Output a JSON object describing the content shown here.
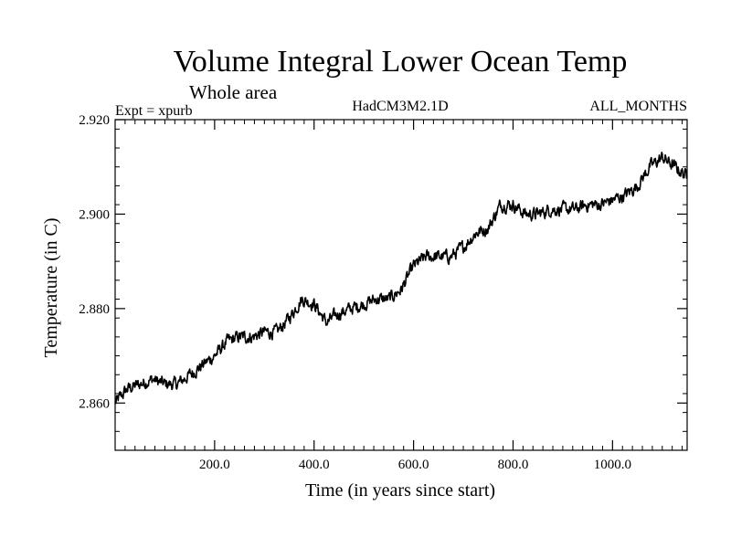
{
  "chart_data": {
    "type": "line",
    "title": "Volume Integral Lower Ocean Temp",
    "subtitle": "Whole area",
    "info_left": "Expt = xpurb",
    "info_center": "HadCM3M2.1D",
    "info_right": "ALL_MONTHS",
    "xlabel": "Time (in years since start)",
    "ylabel": "Temperature (in C)",
    "xlim": [
      0,
      1150
    ],
    "ylim": [
      2.85,
      2.92
    ],
    "x_ticks": [
      200,
      400,
      600,
      800,
      1000
    ],
    "x_tick_labels": [
      "200.0",
      "400.0",
      "600.0",
      "800.0",
      "1000.0"
    ],
    "y_ticks": [
      2.86,
      2.88,
      2.9,
      2.92
    ],
    "y_tick_labels": [
      "2.860",
      "2.880",
      "2.900",
      "2.920"
    ],
    "series": [
      {
        "name": "Volume integral lower ocean temperature",
        "color": "#000000",
        "x": [
          0,
          25,
          50,
          75,
          100,
          125,
          150,
          175,
          200,
          225,
          250,
          275,
          300,
          325,
          350,
          375,
          400,
          425,
          450,
          475,
          500,
          525,
          550,
          575,
          600,
          625,
          650,
          675,
          700,
          725,
          750,
          775,
          800,
          825,
          850,
          875,
          900,
          925,
          950,
          975,
          1000,
          1025,
          1050,
          1075,
          1100,
          1125,
          1150
        ],
        "y": [
          2.86,
          2.863,
          2.864,
          2.865,
          2.864,
          2.864,
          2.866,
          2.868,
          2.87,
          2.873,
          2.874,
          2.874,
          2.875,
          2.875,
          2.878,
          2.882,
          2.881,
          2.877,
          2.879,
          2.88,
          2.881,
          2.882,
          2.882,
          2.884,
          2.889,
          2.891,
          2.891,
          2.891,
          2.893,
          2.896,
          2.897,
          2.902,
          2.902,
          2.9,
          2.9,
          2.901,
          2.901,
          2.901,
          2.902,
          2.902,
          2.903,
          2.904,
          2.906,
          2.91,
          2.912,
          2.91,
          2.908
        ]
      }
    ]
  }
}
